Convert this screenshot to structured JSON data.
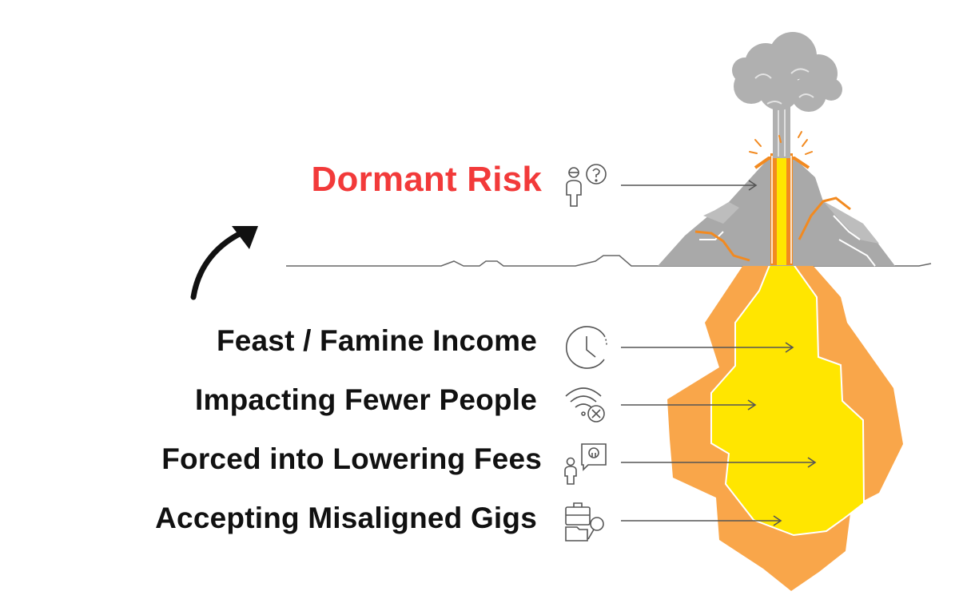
{
  "headline": {
    "text": "Dormant Risk",
    "color": "#f23a3a",
    "icon": "person-question-icon"
  },
  "items": [
    {
      "text": "Feast / Famine Income",
      "icon": "clock-icon"
    },
    {
      "text": "Impacting Fewer People",
      "icon": "wifi-off-icon"
    },
    {
      "text": "Forced into Lowering Fees",
      "icon": "person-speech-icon"
    },
    {
      "text": "Accepting Misaligned Gigs",
      "icon": "briefcase-search-icon"
    }
  ],
  "colors": {
    "mountain": "#a9a9a9",
    "smoke": "#b0b0b0",
    "magma_outer": "#f9a64a",
    "magma_inner": "#ffe600",
    "lava": "#f28a20",
    "text": "#111111"
  }
}
